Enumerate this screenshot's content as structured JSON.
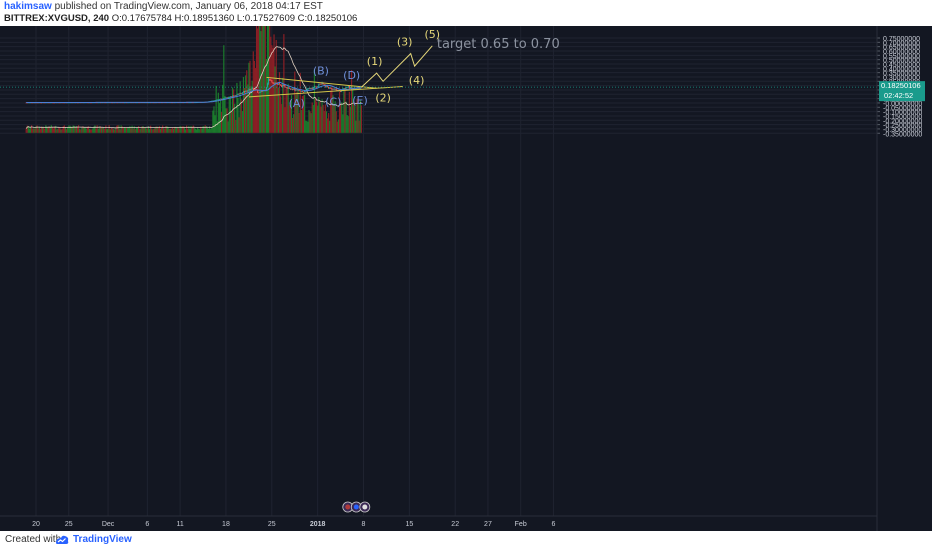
{
  "header": {
    "author": "hakimsaw",
    "published_text": "published on TradingView.com, January 06, 2018 04:17 EST",
    "symbol": "BITTREX:XVGUSD, 240",
    "ohlc": "O:0.17675784 H:0.18951360 L:0.17527609 C:0.18250106"
  },
  "footer": {
    "created_with": "Created with",
    "brand": "TradingView"
  },
  "colors": {
    "background": "#131722",
    "grid": "#1f2330",
    "up": "#26a69a",
    "down": "#ef5350",
    "volume_up": "#1b7a2c",
    "volume_down": "#8a1f25",
    "triangle": "#d4c64a",
    "wave_abcde": "#6f8fd8",
    "projection": "#e6d87a",
    "axis_text": "#c8ccd6",
    "price_badge": "#1a9b8c"
  },
  "chart_data": {
    "type": "candlestick",
    "y_axis": {
      "ticks": [
        "0.75000000",
        "0.70000000",
        "0.65000000",
        "0.60000000",
        "0.55000000",
        "0.50000000",
        "0.45000000",
        "0.40000000",
        "0.35000000",
        "0.30000000",
        "0.25000000",
        "0.20000000",
        "0.15000000",
        "0.10000000",
        "0.05000000",
        "-0.00000000",
        "-0.05000000",
        "-0.10000000",
        "-0.15000000",
        "-0.20000000",
        "-0.25000000",
        "-0.30000000",
        "-0.35000000"
      ],
      "range": [
        -0.35,
        0.78
      ]
    },
    "x_axis": {
      "ticks": [
        {
          "label": "20",
          "day": 0
        },
        {
          "label": "25",
          "day": 5
        },
        {
          "label": "Dec",
          "day": 11
        },
        {
          "label": "6",
          "day": 17
        },
        {
          "label": "11",
          "day": 22
        },
        {
          "label": "18",
          "day": 29
        },
        {
          "label": "25",
          "day": 36
        },
        {
          "label": "2018",
          "day": 43
        },
        {
          "label": "8",
          "day": 50
        },
        {
          "label": "15",
          "day": 57
        },
        {
          "label": "22",
          "day": 64
        },
        {
          "label": "27",
          "day": 69
        },
        {
          "label": "Feb",
          "day": 74
        },
        {
          "label": "6",
          "day": 79
        }
      ]
    },
    "price_path": [
      {
        "day": -1.5,
        "price": 0.005
      },
      {
        "day": 24,
        "price": 0.007
      },
      {
        "day": 26,
        "price": 0.012
      },
      {
        "day": 27.5,
        "price": 0.035
      },
      {
        "day": 29.5,
        "price": 0.07
      },
      {
        "day": 30.5,
        "price": 0.09
      },
      {
        "day": 31.5,
        "price": 0.12
      },
      {
        "day": 32.5,
        "price": 0.15
      },
      {
        "day": 33.2,
        "price": 0.17
      },
      {
        "day": 34,
        "price": 0.115
      },
      {
        "day": 35,
        "price": 0.155
      },
      {
        "day": 35.5,
        "price": 0.27
      },
      {
        "day": 36.5,
        "price": 0.235
      },
      {
        "day": 37.3,
        "price": 0.2
      },
      {
        "day": 38.2,
        "price": 0.185
      },
      {
        "day": 39,
        "price": 0.17
      },
      {
        "day": 39.8,
        "price": 0.14
      },
      {
        "day": 40.8,
        "price": 0.13
      },
      {
        "day": 41.8,
        "price": 0.17
      },
      {
        "day": 42.6,
        "price": 0.18
      },
      {
        "day": 43.4,
        "price": 0.225
      },
      {
        "day": 44.2,
        "price": 0.2
      },
      {
        "day": 44.8,
        "price": 0.17
      },
      {
        "day": 45.6,
        "price": 0.155
      },
      {
        "day": 46.4,
        "price": 0.14
      },
      {
        "day": 47,
        "price": 0.16
      },
      {
        "day": 47.6,
        "price": 0.195
      },
      {
        "day": 48.2,
        "price": 0.17
      },
      {
        "day": 48.7,
        "price": 0.16
      },
      {
        "day": 49.3,
        "price": 0.18
      },
      {
        "day": 49.7,
        "price": 0.1825
      }
    ],
    "triangle": {
      "upper": [
        {
          "day": 35.2,
          "price": 0.295
        },
        {
          "day": 52,
          "price": 0.17
        }
      ],
      "lower": [
        {
          "day": 32.5,
          "price": 0.07
        },
        {
          "day": 56,
          "price": 0.19
        }
      ]
    },
    "wave_abcde": [
      {
        "label": "(A)",
        "day": 39.8,
        "price": 0.115
      },
      {
        "label": "(B)",
        "day": 43.5,
        "price": 0.235
      },
      {
        "label": "(C)",
        "day": 46.3,
        "price": 0.13
      },
      {
        "label": "(D)",
        "day": 48.2,
        "price": 0.205
      },
      {
        "label": "(E)",
        "day": 48.7,
        "price": 0.15
      }
    ],
    "projection": [
      {
        "label": "(1)",
        "day": 52,
        "price": 0.345
      },
      {
        "label": "(2)",
        "day": 53,
        "price": 0.25
      },
      {
        "label": "(3)",
        "day": 57.2,
        "price": 0.57
      },
      {
        "label": "(4)",
        "day": 57.8,
        "price": 0.425
      },
      {
        "label": "(5)",
        "day": 60.5,
        "price": 0.66
      }
    ],
    "annotation": "target 0.65 to 0.70",
    "current_price": {
      "value": 0.1825,
      "label": "0.18250106",
      "countdown": "02:42:52"
    },
    "volume": {
      "baseline_price": -0.345,
      "scale": "relative 0-1",
      "peak_day": 34.8
    }
  }
}
